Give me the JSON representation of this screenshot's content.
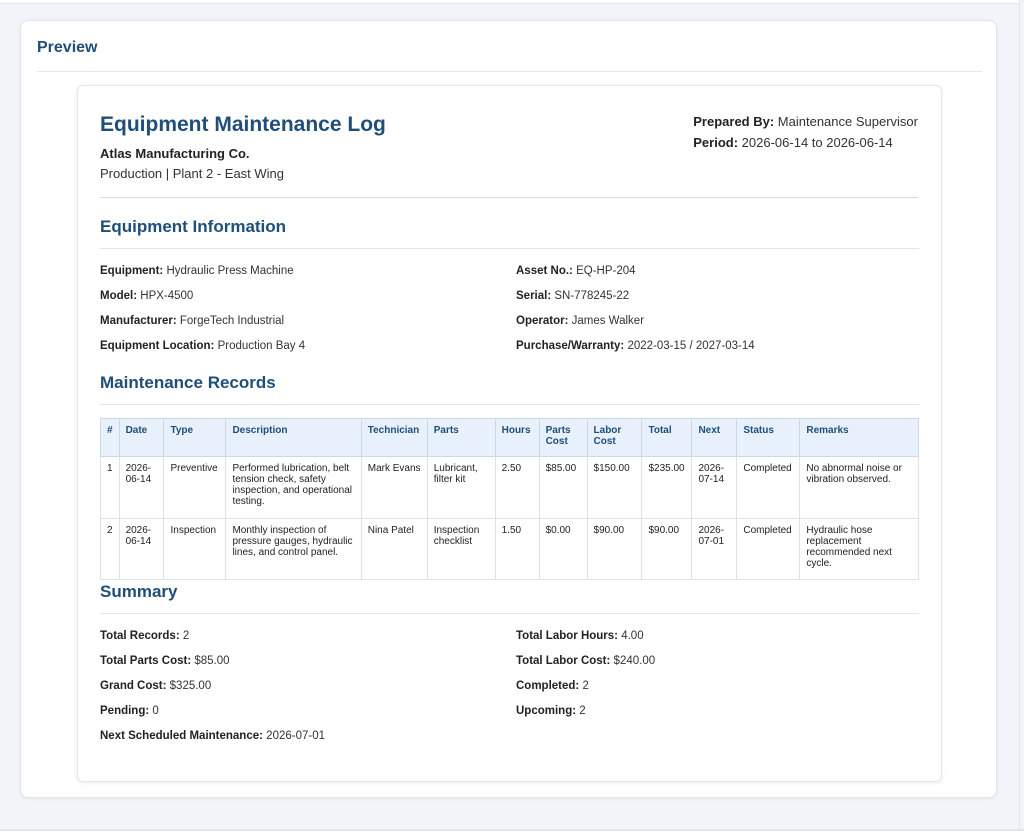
{
  "panel": {
    "title": "Preview"
  },
  "document": {
    "title": "Equipment Maintenance Log",
    "company": "Atlas Manufacturing Co.",
    "department_line": "Production | Plant 2 - East Wing",
    "prepared_by_label": "Prepared By:",
    "prepared_by": "Maintenance Supervisor",
    "period_label": "Period:",
    "period": "2026-06-14 to 2026-06-14"
  },
  "equipment_info": {
    "title": "Equipment Information",
    "fields": [
      {
        "label": "Equipment:",
        "value": "Hydraulic Press Machine"
      },
      {
        "label": "Asset No.:",
        "value": "EQ-HP-204"
      },
      {
        "label": "Model:",
        "value": "HPX-4500"
      },
      {
        "label": "Serial:",
        "value": "SN-778245-22"
      },
      {
        "label": "Manufacturer:",
        "value": "ForgeTech Industrial"
      },
      {
        "label": "Operator:",
        "value": "James Walker"
      },
      {
        "label": "Equipment Location:",
        "value": "Production Bay 4"
      },
      {
        "label": "Purchase/Warranty:",
        "value": "2022-03-15 / 2027-03-14"
      }
    ]
  },
  "records": {
    "title": "Maintenance Records",
    "headers": [
      "#",
      "Date",
      "Type",
      "Description",
      "Technician",
      "Parts",
      "Hours",
      "Parts Cost",
      "Labor Cost",
      "Total",
      "Next",
      "Status",
      "Remarks"
    ],
    "rows": [
      [
        "1",
        "2026-06-14",
        "Preventive",
        "Performed lubrication, belt tension check, safety inspection, and operational testing.",
        "Mark Evans",
        "Lubricant, filter kit",
        "2.50",
        "$85.00",
        "$150.00",
        "$235.00",
        "2026-07-14",
        "Completed",
        "No abnormal noise or vibration observed."
      ],
      [
        "2",
        "2026-06-14",
        "Inspection",
        "Monthly inspection of pressure gauges, hydraulic lines, and control panel.",
        "Nina Patel",
        "Inspection checklist",
        "1.50",
        "$0.00",
        "$90.00",
        "$90.00",
        "2026-07-01",
        "Completed",
        "Hydraulic hose replacement recommended next cycle."
      ]
    ]
  },
  "summary": {
    "title": "Summary",
    "fields": [
      {
        "label": "Total Records:",
        "value": "2"
      },
      {
        "label": "Total Labor Hours:",
        "value": "4.00"
      },
      {
        "label": "Total Parts Cost:",
        "value": "$85.00"
      },
      {
        "label": "Total Labor Cost:",
        "value": "$240.00"
      },
      {
        "label": "Grand Cost:",
        "value": "$325.00"
      },
      {
        "label": "Completed:",
        "value": "2"
      },
      {
        "label": "Pending:",
        "value": "0"
      },
      {
        "label": "Upcoming:",
        "value": "2"
      },
      {
        "label": "Next Scheduled Maintenance:",
        "value": "2026-07-01"
      }
    ]
  }
}
